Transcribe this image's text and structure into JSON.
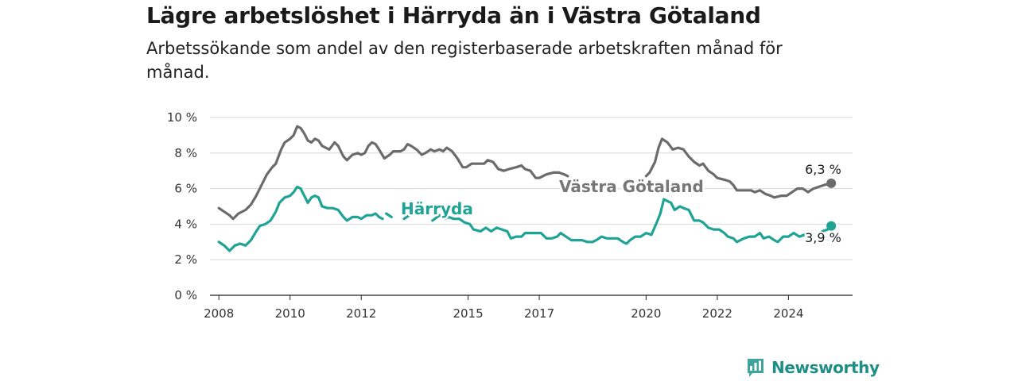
{
  "title": "Lägre arbetslöshet i Härryda än i Västra Götaland",
  "subtitle": "Arbetssökande som andel av den registerbaserade arbetskraften månad för månad.",
  "brand": {
    "name": "Newsworthy",
    "icon": "bar-chart-icon"
  },
  "chart_data": {
    "type": "line",
    "xlabel": "",
    "ylabel": "",
    "ylim": [
      0,
      10
    ],
    "xlim": [
      2007.75,
      2025.8
    ],
    "grid": true,
    "y_ticks": [
      0,
      2,
      4,
      6,
      8,
      10
    ],
    "y_tick_labels": [
      "0 %",
      "2 %",
      "4 %",
      "6 %",
      "8 %",
      "10 %"
    ],
    "x_ticks": [
      2008,
      2010,
      2012,
      2015,
      2017,
      2020,
      2022,
      2024
    ],
    "x_tick_labels": [
      "2008",
      "2010",
      "2012",
      "2015",
      "2017",
      "2020",
      "2022",
      "2024"
    ],
    "series": [
      {
        "name": "Västra Götaland",
        "color": "#6b6b6b",
        "end_label": "6,3 %",
        "segments": [
          [
            [
              2008.0,
              4.9
            ],
            [
              2008.15,
              4.7
            ],
            [
              2008.3,
              4.5
            ],
            [
              2008.4,
              4.3
            ],
            [
              2008.55,
              4.6
            ],
            [
              2008.75,
              4.8
            ],
            [
              2008.9,
              5.1
            ],
            [
              2009.05,
              5.6
            ],
            [
              2009.2,
              6.2
            ],
            [
              2009.35,
              6.8
            ],
            [
              2009.5,
              7.2
            ],
            [
              2009.6,
              7.4
            ],
            [
              2009.75,
              8.2
            ],
            [
              2009.85,
              8.6
            ],
            [
              2010.0,
              8.8
            ],
            [
              2010.1,
              9.0
            ],
            [
              2010.2,
              9.5
            ],
            [
              2010.3,
              9.4
            ],
            [
              2010.4,
              9.1
            ],
            [
              2010.5,
              8.7
            ],
            [
              2010.6,
              8.6
            ],
            [
              2010.7,
              8.8
            ],
            [
              2010.8,
              8.7
            ],
            [
              2010.9,
              8.4
            ],
            [
              2011.0,
              8.3
            ],
            [
              2011.1,
              8.2
            ],
            [
              2011.25,
              8.6
            ],
            [
              2011.35,
              8.4
            ],
            [
              2011.5,
              7.8
            ],
            [
              2011.6,
              7.6
            ],
            [
              2011.75,
              7.9
            ],
            [
              2011.9,
              8.0
            ],
            [
              2012.0,
              7.9
            ],
            [
              2012.1,
              8.0
            ],
            [
              2012.2,
              8.4
            ],
            [
              2012.3,
              8.6
            ],
            [
              2012.4,
              8.5
            ],
            [
              2012.5,
              8.2
            ],
            [
              2012.65,
              7.7
            ],
            [
              2012.8,
              7.9
            ],
            [
              2012.9,
              8.1
            ],
            [
              2013.1,
              8.1
            ],
            [
              2013.2,
              8.2
            ],
            [
              2013.3,
              8.5
            ],
            [
              2013.4,
              8.4
            ],
            [
              2013.55,
              8.2
            ],
            [
              2013.7,
              7.9
            ],
            [
              2013.8,
              8.0
            ],
            [
              2013.95,
              8.2
            ],
            [
              2014.05,
              8.1
            ],
            [
              2014.2,
              8.2
            ],
            [
              2014.3,
              8.1
            ],
            [
              2014.4,
              8.3
            ],
            [
              2014.55,
              8.1
            ],
            [
              2014.7,
              7.7
            ],
            [
              2014.85,
              7.2
            ],
            [
              2014.95,
              7.2
            ],
            [
              2015.1,
              7.4
            ],
            [
              2015.3,
              7.4
            ],
            [
              2015.45,
              7.4
            ],
            [
              2015.55,
              7.6
            ],
            [
              2015.7,
              7.5
            ],
            [
              2015.85,
              7.1
            ],
            [
              2016.0,
              7.0
            ],
            [
              2016.15,
              7.1
            ],
            [
              2016.35,
              7.2
            ],
            [
              2016.5,
              7.3
            ],
            [
              2016.6,
              7.1
            ],
            [
              2016.75,
              7.0
            ],
            [
              2016.9,
              6.6
            ],
            [
              2017.0,
              6.6
            ],
            [
              2017.2,
              6.8
            ],
            [
              2017.4,
              6.9
            ],
            [
              2017.55,
              6.9
            ],
            [
              2017.7,
              6.8
            ],
            [
              2017.8,
              6.7
            ]
          ],
          [
            [
              2020.0,
              6.7
            ],
            [
              2020.1,
              6.9
            ],
            [
              2020.25,
              7.5
            ],
            [
              2020.35,
              8.3
            ],
            [
              2020.45,
              8.8
            ],
            [
              2020.6,
              8.6
            ],
            [
              2020.75,
              8.2
            ],
            [
              2020.9,
              8.3
            ],
            [
              2021.05,
              8.2
            ],
            [
              2021.2,
              7.8
            ],
            [
              2021.35,
              7.5
            ],
            [
              2021.5,
              7.3
            ],
            [
              2021.6,
              7.4
            ],
            [
              2021.75,
              7.0
            ],
            [
              2021.9,
              6.8
            ],
            [
              2022.0,
              6.6
            ],
            [
              2022.2,
              6.5
            ],
            [
              2022.35,
              6.4
            ],
            [
              2022.45,
              6.2
            ],
            [
              2022.55,
              5.9
            ],
            [
              2022.75,
              5.9
            ],
            [
              2022.95,
              5.9
            ],
            [
              2023.05,
              5.8
            ],
            [
              2023.2,
              5.9
            ],
            [
              2023.35,
              5.7
            ],
            [
              2023.5,
              5.6
            ],
            [
              2023.6,
              5.5
            ],
            [
              2023.8,
              5.6
            ],
            [
              2023.95,
              5.6
            ],
            [
              2024.1,
              5.8
            ],
            [
              2024.25,
              6.0
            ],
            [
              2024.4,
              6.0
            ],
            [
              2024.55,
              5.8
            ],
            [
              2024.7,
              6.0
            ],
            [
              2024.85,
              6.1
            ],
            [
              2025.0,
              6.2
            ],
            [
              2025.2,
              6.3
            ]
          ]
        ]
      },
      {
        "name": "Härryda",
        "color": "#1ea395",
        "end_label": "3,9 %",
        "segments": [
          [
            [
              2008.0,
              3.0
            ],
            [
              2008.15,
              2.8
            ],
            [
              2008.3,
              2.5
            ],
            [
              2008.45,
              2.8
            ],
            [
              2008.6,
              2.9
            ],
            [
              2008.75,
              2.8
            ],
            [
              2008.9,
              3.1
            ],
            [
              2009.05,
              3.6
            ],
            [
              2009.15,
              3.9
            ],
            [
              2009.3,
              4.0
            ],
            [
              2009.45,
              4.2
            ],
            [
              2009.6,
              4.7
            ],
            [
              2009.7,
              5.2
            ],
            [
              2009.85,
              5.5
            ],
            [
              2010.0,
              5.6
            ],
            [
              2010.1,
              5.8
            ],
            [
              2010.2,
              6.1
            ],
            [
              2010.3,
              6.0
            ],
            [
              2010.4,
              5.6
            ],
            [
              2010.5,
              5.2
            ],
            [
              2010.6,
              5.5
            ],
            [
              2010.7,
              5.6
            ],
            [
              2010.8,
              5.5
            ],
            [
              2010.9,
              5.0
            ],
            [
              2011.05,
              4.9
            ],
            [
              2011.2,
              4.9
            ],
            [
              2011.35,
              4.8
            ],
            [
              2011.5,
              4.4
            ],
            [
              2011.6,
              4.2
            ],
            [
              2011.75,
              4.4
            ],
            [
              2011.9,
              4.4
            ],
            [
              2012.0,
              4.3
            ],
            [
              2012.15,
              4.5
            ],
            [
              2012.3,
              4.5
            ],
            [
              2012.4,
              4.6
            ],
            [
              2012.5,
              4.4
            ],
            [
              2012.6,
              4.3
            ]
          ],
          [
            [
              2012.7,
              4.6
            ],
            [
              2012.85,
              4.4
            ]
          ],
          [
            [
              2013.2,
              4.3
            ],
            [
              2013.35,
              4.5
            ]
          ],
          [
            [
              2014.0,
              4.2
            ],
            [
              2014.2,
              4.5
            ],
            [
              2014.35,
              4.3
            ],
            [
              2014.45,
              4.4
            ],
            [
              2014.6,
              4.3
            ],
            [
              2014.75,
              4.3
            ],
            [
              2014.9,
              4.1
            ],
            [
              2015.05,
              4.0
            ],
            [
              2015.15,
              3.7
            ],
            [
              2015.35,
              3.6
            ],
            [
              2015.5,
              3.8
            ],
            [
              2015.65,
              3.6
            ],
            [
              2015.8,
              3.8
            ],
            [
              2015.95,
              3.7
            ],
            [
              2016.1,
              3.6
            ],
            [
              2016.2,
              3.2
            ],
            [
              2016.35,
              3.3
            ],
            [
              2016.5,
              3.3
            ],
            [
              2016.6,
              3.5
            ],
            [
              2016.75,
              3.5
            ],
            [
              2016.9,
              3.5
            ],
            [
              2017.05,
              3.5
            ],
            [
              2017.2,
              3.2
            ],
            [
              2017.35,
              3.2
            ],
            [
              2017.5,
              3.3
            ],
            [
              2017.6,
              3.5
            ],
            [
              2017.75,
              3.3
            ],
            [
              2017.9,
              3.1
            ],
            [
              2018.05,
              3.1
            ],
            [
              2018.2,
              3.1
            ],
            [
              2018.35,
              3.0
            ],
            [
              2018.5,
              3.0
            ],
            [
              2018.6,
              3.1
            ],
            [
              2018.75,
              3.3
            ],
            [
              2018.9,
              3.2
            ],
            [
              2019.05,
              3.2
            ],
            [
              2019.2,
              3.2
            ],
            [
              2019.35,
              3.0
            ],
            [
              2019.45,
              2.9
            ],
            [
              2019.55,
              3.1
            ],
            [
              2019.7,
              3.3
            ],
            [
              2019.85,
              3.3
            ],
            [
              2020.0,
              3.5
            ],
            [
              2020.15,
              3.4
            ],
            [
              2020.3,
              4.1
            ],
            [
              2020.4,
              4.6
            ],
            [
              2020.5,
              5.4
            ],
            [
              2020.6,
              5.3
            ],
            [
              2020.7,
              5.2
            ],
            [
              2020.8,
              4.8
            ],
            [
              2020.95,
              5.0
            ],
            [
              2021.05,
              4.9
            ],
            [
              2021.2,
              4.8
            ],
            [
              2021.35,
              4.2
            ],
            [
              2021.5,
              4.2
            ],
            [
              2021.6,
              4.1
            ],
            [
              2021.75,
              3.8
            ],
            [
              2021.9,
              3.7
            ],
            [
              2022.05,
              3.7
            ],
            [
              2022.2,
              3.5
            ],
            [
              2022.3,
              3.3
            ],
            [
              2022.45,
              3.2
            ],
            [
              2022.55,
              3.0
            ],
            [
              2022.75,
              3.2
            ],
            [
              2022.9,
              3.3
            ],
            [
              2023.05,
              3.3
            ],
            [
              2023.2,
              3.5
            ],
            [
              2023.3,
              3.2
            ],
            [
              2023.45,
              3.3
            ],
            [
              2023.6,
              3.1
            ],
            [
              2023.7,
              3.0
            ],
            [
              2023.85,
              3.3
            ],
            [
              2024.0,
              3.3
            ],
            [
              2024.15,
              3.5
            ],
            [
              2024.3,
              3.3
            ],
            [
              2024.45,
              3.4
            ],
            [
              2024.55,
              3.3
            ],
            [
              2024.7,
              3.1
            ]
          ],
          [
            [
              2024.95,
              3.6
            ],
            [
              2025.1,
              3.7
            ],
            [
              2025.2,
              3.9
            ]
          ]
        ]
      }
    ]
  }
}
